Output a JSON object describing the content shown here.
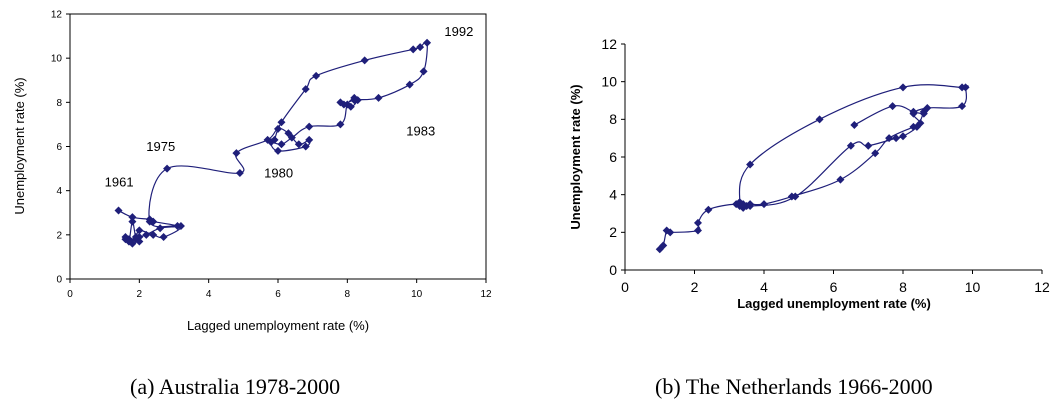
{
  "chart_data": [
    {
      "type": "line",
      "caption": "(a) Australia 1978-2000",
      "xlabel": "Lagged unemployment rate (%)",
      "ylabel": "Unemployment rate (%)",
      "xlim": [
        0,
        12
      ],
      "ylim": [
        0,
        12
      ],
      "xticks": [
        "0",
        "2",
        "4",
        "6",
        "8",
        "10",
        "12"
      ],
      "yticks": [
        "0",
        "2",
        "4",
        "6",
        "8",
        "10",
        "12"
      ],
      "color": "#1f1f7a",
      "annotations": [
        {
          "text": "1961",
          "x": 1.0,
          "y": 4.2
        },
        {
          "text": "1975",
          "x": 2.2,
          "y": 5.8
        },
        {
          "text": "1980",
          "x": 5.6,
          "y": 4.6
        },
        {
          "text": "1983",
          "x": 9.7,
          "y": 6.5
        },
        {
          "text": "1992",
          "x": 10.8,
          "y": 11.0
        }
      ],
      "x": [
        1.4,
        1.8,
        2.3,
        2.4,
        3.1,
        2.6,
        2.2,
        2.0,
        1.9,
        1.7,
        1.6,
        1.8,
        1.7,
        2.0,
        1.6,
        1.7,
        1.8,
        1.9,
        2.0,
        2.4,
        2.7,
        3.2,
        2.3,
        2.8,
        4.9,
        4.8,
        5.7,
        6.0,
        6.3,
        6.6,
        6.9,
        6.8,
        6.0,
        5.8,
        6.1,
        6.4,
        6.9,
        7.8,
        8.0,
        8.2,
        8.3,
        8.1,
        7.8,
        7.9,
        8.2,
        8.9,
        9.8,
        10.2,
        10.3,
        10.1,
        9.9,
        8.5,
        7.1,
        6.8,
        6.1,
        5.9
      ],
      "y": [
        3.1,
        2.8,
        2.7,
        2.6,
        2.4,
        2.3,
        2.0,
        1.9,
        1.8,
        1.7,
        1.8,
        1.6,
        1.8,
        1.7,
        1.9,
        1.7,
        2.6,
        1.9,
        2.2,
        2.0,
        1.9,
        2.4,
        2.6,
        5.0,
        4.8,
        5.7,
        6.3,
        6.8,
        6.6,
        6.1,
        6.3,
        6.0,
        5.8,
        6.2,
        6.1,
        6.4,
        6.9,
        7.0,
        7.9,
        8.2,
        8.1,
        7.8,
        8.0,
        7.9,
        8.1,
        8.2,
        8.8,
        9.4,
        10.7,
        10.5,
        10.4,
        9.9,
        9.2,
        8.6,
        7.1,
        6.3
      ],
      "label_font_size": "",
      "axis_border": "box"
    },
    {
      "type": "line",
      "caption": "(b) The Netherlands 1966-2000",
      "xlabel": "Lagged unemployment rate (%)",
      "ylabel": "Unemployment rate (%)",
      "xlim": [
        0,
        12
      ],
      "ylim": [
        0,
        12
      ],
      "xticks": [
        "0",
        "2",
        "4",
        "6",
        "8",
        "10",
        "12"
      ],
      "yticks": [
        "0",
        "2",
        "4",
        "6",
        "8",
        "10",
        "12"
      ],
      "color": "#1f1f7a",
      "annotations": [],
      "x": [
        1.0,
        1.1,
        1.2,
        1.3,
        2.1,
        2.1,
        2.4,
        3.2,
        3.4,
        3.3,
        3.4,
        3.6,
        4.0,
        4.8,
        6.2,
        7.2,
        7.6,
        8.3,
        8.5,
        8.3,
        8.7,
        9.7,
        9.8,
        9.7,
        8.0,
        5.6,
        3.6,
        3.3,
        3.5,
        3.3,
        3.6,
        4.9,
        6.5,
        7.0,
        7.8,
        8.0,
        8.4,
        8.6,
        8.6,
        8.3,
        7.7,
        6.6
      ],
      "y": [
        1.1,
        1.3,
        2.1,
        2.0,
        2.1,
        2.5,
        3.2,
        3.5,
        3.3,
        3.4,
        3.5,
        3.5,
        3.5,
        3.9,
        4.8,
        6.2,
        7.0,
        7.6,
        7.8,
        8.3,
        8.6,
        8.7,
        9.7,
        9.7,
        9.7,
        8.0,
        5.6,
        3.6,
        3.4,
        3.6,
        3.4,
        3.9,
        6.6,
        6.6,
        7.0,
        7.1,
        7.6,
        8.4,
        8.3,
        8.4,
        8.7,
        7.7
      ],
      "label_font_size": "",
      "axis_border": "l"
    }
  ]
}
